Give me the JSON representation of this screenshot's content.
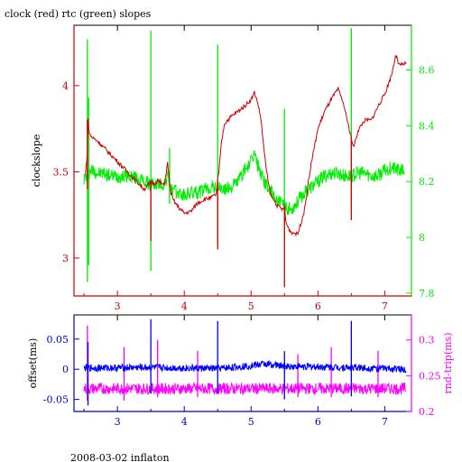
{
  "header": {
    "title": "clock (red) rtc (green) slopes"
  },
  "footer": {
    "caption": "2008-03-02 inflaton"
  },
  "colors": {
    "clock": "#cc0000",
    "rtc": "#00ee00",
    "offset": "#0000ff",
    "rndtrip": "#ff00ff",
    "frame_top": "#000000"
  },
  "chart_data": [
    {
      "type": "line",
      "title": "clock (red) rtc (green) slopes",
      "x_range": [
        2.35,
        7.4
      ],
      "x_ticks": [
        3,
        4,
        5,
        6,
        7
      ],
      "left_axis": {
        "label": "clockslope",
        "range": [
          2.78,
          4.35
        ],
        "ticks": [
          3,
          3.5,
          4
        ],
        "color": "#cc0000"
      },
      "right_axis": {
        "label": "",
        "range": [
          7.79,
          8.76
        ],
        "ticks": [
          7.8,
          8,
          8.2,
          8.4,
          8.6
        ],
        "tick_labels": [
          "7.8",
          "8",
          "8.2",
          "8.4",
          "8.6"
        ],
        "color": "#00ee00"
      },
      "grid": false,
      "series": [
        {
          "name": "clock",
          "axis": "left",
          "x": [
            2.52,
            2.55,
            2.56,
            2.58,
            2.62,
            2.7,
            2.8,
            2.9,
            3.0,
            3.1,
            3.2,
            3.3,
            3.4,
            3.48,
            3.5,
            3.52,
            3.55,
            3.6,
            3.7,
            3.75,
            3.8,
            3.83,
            3.9,
            4.0,
            4.1,
            4.2,
            4.3,
            4.4,
            4.48,
            4.5,
            4.52,
            4.55,
            4.6,
            4.7,
            4.8,
            4.9,
            5.0,
            5.05,
            5.1,
            5.15,
            5.2,
            5.25,
            5.3,
            5.4,
            5.48,
            5.5,
            5.52,
            5.55,
            5.6,
            5.7,
            5.8,
            5.85,
            5.9,
            6.0,
            6.1,
            6.2,
            6.3,
            6.38,
            6.45,
            6.5,
            6.52,
            6.55,
            6.6,
            6.7,
            6.8,
            6.9,
            7.0,
            7.1,
            7.15,
            7.18,
            7.2,
            7.25,
            7.32
          ],
          "y": [
            3.48,
            3.62,
            3.8,
            3.72,
            3.7,
            3.68,
            3.64,
            3.6,
            3.56,
            3.52,
            3.48,
            3.44,
            3.4,
            3.43,
            3.44,
            3.44,
            3.43,
            3.45,
            3.42,
            3.55,
            3.38,
            3.34,
            3.3,
            3.26,
            3.27,
            3.32,
            3.34,
            3.35,
            3.37,
            3.45,
            3.5,
            3.65,
            3.78,
            3.82,
            3.85,
            3.88,
            3.92,
            3.96,
            3.9,
            3.8,
            3.6,
            3.45,
            3.36,
            3.3,
            3.28,
            3.3,
            3.21,
            3.18,
            3.15,
            3.14,
            3.28,
            3.42,
            3.55,
            3.75,
            3.85,
            3.92,
            3.98,
            3.9,
            3.78,
            3.7,
            3.65,
            3.66,
            3.74,
            3.8,
            3.8,
            3.88,
            3.95,
            4.06,
            4.15,
            4.18,
            4.12,
            4.12,
            4.13
          ]
        },
        {
          "name": "rtc",
          "axis": "right",
          "x": [
            2.5,
            2.55,
            2.6,
            2.65,
            2.7,
            2.8,
            2.9,
            3.0,
            3.1,
            3.2,
            3.3,
            3.4,
            3.5,
            3.6,
            3.7,
            3.75,
            3.8,
            3.9,
            4.0,
            4.1,
            4.2,
            4.3,
            4.4,
            4.5,
            4.6,
            4.7,
            4.8,
            4.9,
            5.0,
            5.05,
            5.1,
            5.2,
            5.3,
            5.4,
            5.5,
            5.6,
            5.7,
            5.8,
            5.9,
            6.0,
            6.1,
            6.2,
            6.3,
            6.4,
            6.5,
            6.6,
            6.7,
            6.8,
            6.9,
            7.0,
            7.1,
            7.2,
            7.3
          ],
          "y": [
            8.21,
            8.22,
            8.24,
            8.24,
            8.23,
            8.23,
            8.22,
            8.22,
            8.22,
            8.22,
            8.21,
            8.2,
            8.19,
            8.19,
            8.19,
            8.22,
            8.17,
            8.16,
            8.15,
            8.16,
            8.16,
            8.17,
            8.18,
            8.18,
            8.17,
            8.18,
            8.2,
            8.24,
            8.27,
            8.3,
            8.26,
            8.2,
            8.16,
            8.13,
            8.11,
            8.1,
            8.13,
            8.16,
            8.18,
            8.2,
            8.22,
            8.23,
            8.23,
            8.22,
            8.22,
            8.23,
            8.23,
            8.22,
            8.22,
            8.24,
            8.25,
            8.24,
            8.24
          ]
        }
      ],
      "spikes": [
        {
          "series": "rtc",
          "x": 2.55,
          "y_low": 7.84,
          "y_high": 8.71
        },
        {
          "series": "rtc",
          "x": 2.57,
          "y_low": 7.9,
          "y_high": 8.5
        },
        {
          "series": "rtc",
          "x": 3.5,
          "y_low": 7.88,
          "y_high": 8.74
        },
        {
          "series": "rtc",
          "x": 4.5,
          "y_low": 7.98,
          "y_high": 8.69
        },
        {
          "series": "rtc",
          "x": 5.5,
          "y_low": 7.99,
          "y_high": 8.46
        },
        {
          "series": "rtc",
          "x": 6.5,
          "y_low": 8.1,
          "y_high": 8.75
        },
        {
          "series": "rtc",
          "x": 3.78,
          "y_low": 8.12,
          "y_high": 8.32
        },
        {
          "series": "clock",
          "x": 2.55,
          "y_low": 3.4,
          "y_high": 3.8
        },
        {
          "series": "clock",
          "x": 3.5,
          "y_low": 3.1,
          "y_high": 3.45
        },
        {
          "series": "clock",
          "x": 4.5,
          "y_low": 3.05,
          "y_high": 3.45
        },
        {
          "series": "clock",
          "x": 5.5,
          "y_low": 2.83,
          "y_high": 3.3
        },
        {
          "series": "clock",
          "x": 6.5,
          "y_low": 3.22,
          "y_high": 3.7
        }
      ]
    },
    {
      "type": "line",
      "x_range": [
        2.35,
        7.4
      ],
      "x_ticks": [
        3,
        4,
        5,
        6,
        7
      ],
      "left_axis": {
        "label": "offset(ms)",
        "range": [
          -0.07,
          0.09
        ],
        "ticks": [
          -0.05,
          0,
          0.05
        ],
        "tick_labels": [
          "-0.05",
          "0",
          "0.05"
        ],
        "color": "#0000cc"
      },
      "right_axis": {
        "label": "rnd-trip(ms)",
        "range": [
          0.2,
          0.335
        ],
        "ticks": [
          0.2,
          0.25,
          0.3
        ],
        "tick_labels": [
          "0.2",
          "0.25",
          "0.3"
        ],
        "color": "#ff00ff"
      },
      "grid": false,
      "series": [
        {
          "name": "offset",
          "axis": "left",
          "baseline": [
            [
              2.5,
              0.002
            ],
            [
              3.5,
              0.003
            ],
            [
              4.5,
              0.001
            ],
            [
              5.0,
              0.006
            ],
            [
              5.2,
              0.009
            ],
            [
              5.5,
              0.005
            ],
            [
              6.0,
              0.004
            ],
            [
              6.5,
              0.003
            ],
            [
              7.0,
              0.001
            ],
            [
              7.32,
              0.0
            ]
          ],
          "noise": 0.006
        },
        {
          "name": "rndtrip",
          "axis": "right",
          "baseline": [
            [
              2.5,
              0.232
            ],
            [
              7.32,
              0.232
            ]
          ],
          "noise": 0.008
        }
      ],
      "spikes": [
        {
          "series": "offset",
          "x": 2.56,
          "y_low": -0.06,
          "y_high": 0.045
        },
        {
          "series": "offset",
          "x": 3.5,
          "y_low": -0.04,
          "y_high": 0.083
        },
        {
          "series": "offset",
          "x": 4.5,
          "y_low": -0.04,
          "y_high": 0.08
        },
        {
          "series": "offset",
          "x": 5.5,
          "y_low": -0.05,
          "y_high": 0.03
        },
        {
          "series": "offset",
          "x": 6.5,
          "y_low": -0.045,
          "y_high": 0.08
        },
        {
          "series": "rndtrip",
          "x": 2.55,
          "y_low": 0.215,
          "y_high": 0.32
        },
        {
          "series": "rndtrip",
          "x": 3.1,
          "y_low": 0.215,
          "y_high": 0.29
        },
        {
          "series": "rndtrip",
          "x": 3.6,
          "y_low": 0.22,
          "y_high": 0.3
        },
        {
          "series": "rndtrip",
          "x": 4.2,
          "y_low": 0.22,
          "y_high": 0.285
        },
        {
          "series": "rndtrip",
          "x": 5.7,
          "y_low": 0.22,
          "y_high": 0.28
        },
        {
          "series": "rndtrip",
          "x": 6.2,
          "y_low": 0.22,
          "y_high": 0.29
        },
        {
          "series": "rndtrip",
          "x": 6.9,
          "y_low": 0.22,
          "y_high": 0.285
        }
      ]
    }
  ]
}
